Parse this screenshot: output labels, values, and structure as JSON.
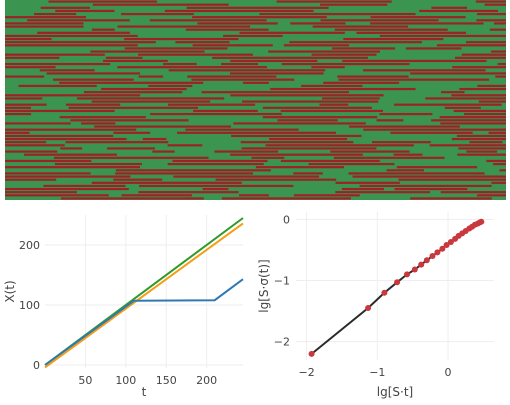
{
  "colors": {
    "strip_background": "#3b9450",
    "strip_bar": "#9b2226",
    "series_blue": "#2f78b4",
    "series_orange": "#f59d14",
    "series_green": "#2e9a2c",
    "fit_line": "#2b2b2b",
    "scatter_point": "#c8383c"
  },
  "chart_data": [
    {
      "type": "heatmap",
      "description_values": "binary states per row along time (1 = red, 0 = green)",
      "rows": 64,
      "grid": false
    },
    {
      "type": "line",
      "xlabel": "t",
      "ylabel": "X(t)",
      "xlim": [
        0,
        245
      ],
      "ylim": [
        -5,
        250
      ],
      "xticks": [
        50,
        100,
        150,
        200
      ],
      "yticks": [
        0,
        100,
        200
      ],
      "grid": true,
      "series": [
        {
          "color_key": "series_green",
          "x": [
            0,
            245
          ],
          "y": [
            0,
            245
          ]
        },
        {
          "color_key": "series_orange",
          "x": [
            0,
            245
          ],
          "y": [
            -4,
            236
          ]
        },
        {
          "color_key": "series_blue",
          "x": [
            0,
            110,
            210,
            245
          ],
          "y": [
            0,
            107,
            108,
            143
          ]
        }
      ]
    },
    {
      "type": "scatter",
      "xlabel": "lg[S·t]",
      "ylabel": "lg[S·σ(t)]",
      "xlim": [
        -2.15,
        0.65
      ],
      "ylim": [
        -2.3,
        0.12
      ],
      "xticks": [
        -2,
        -1,
        0
      ],
      "ytick_labels": [
        "0",
        "−1",
        "−2"
      ],
      "yticks": [
        0,
        -1,
        -2
      ],
      "xtick_labels": [
        "−2",
        "−1",
        "0"
      ],
      "grid": true,
      "points": {
        "x": [
          -1.93,
          -1.13,
          -0.9,
          -0.72,
          -0.58,
          -0.47,
          -0.38,
          -0.3,
          -0.22,
          -0.15,
          -0.08,
          -0.02,
          0.04,
          0.1,
          0.15,
          0.2,
          0.25,
          0.3,
          0.34,
          0.38,
          0.42,
          0.45,
          0.47
        ],
        "y": [
          -2.2,
          -1.45,
          -1.2,
          -1.03,
          -0.9,
          -0.82,
          -0.74,
          -0.67,
          -0.6,
          -0.54,
          -0.48,
          -0.42,
          -0.37,
          -0.32,
          -0.27,
          -0.23,
          -0.19,
          -0.15,
          -0.12,
          -0.09,
          -0.07,
          -0.05,
          -0.04
        ]
      },
      "fit": {
        "x": [
          -1.93,
          -1.13,
          -0.9,
          -0.72,
          -0.58,
          -0.47,
          -0.38,
          -0.3,
          -0.22,
          -0.15,
          -0.08,
          -0.02,
          0.04,
          0.1,
          0.15,
          0.2,
          0.25,
          0.3,
          0.34,
          0.38,
          0.42,
          0.45,
          0.47
        ],
        "y": [
          -2.2,
          -1.45,
          -1.2,
          -1.03,
          -0.9,
          -0.82,
          -0.74,
          -0.67,
          -0.6,
          -0.54,
          -0.48,
          -0.42,
          -0.37,
          -0.32,
          -0.27,
          -0.23,
          -0.19,
          -0.15,
          -0.12,
          -0.09,
          -0.07,
          -0.05,
          -0.04
        ]
      }
    }
  ]
}
